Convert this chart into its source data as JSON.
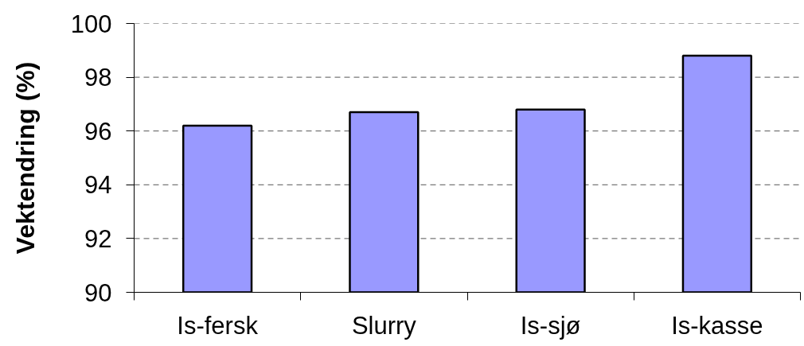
{
  "chart_data": {
    "type": "bar",
    "ylabel": "Vektendring (%)",
    "categories": [
      "Is-fersk",
      "Slurry",
      "Is-sjø",
      "Is-kasse"
    ],
    "values": [
      96.2,
      96.7,
      96.8,
      98.8
    ],
    "color": "#9999ff",
    "ylim": [
      90,
      100
    ],
    "yticks": [
      90,
      92,
      94,
      96,
      98,
      100
    ],
    "grid": "y"
  }
}
